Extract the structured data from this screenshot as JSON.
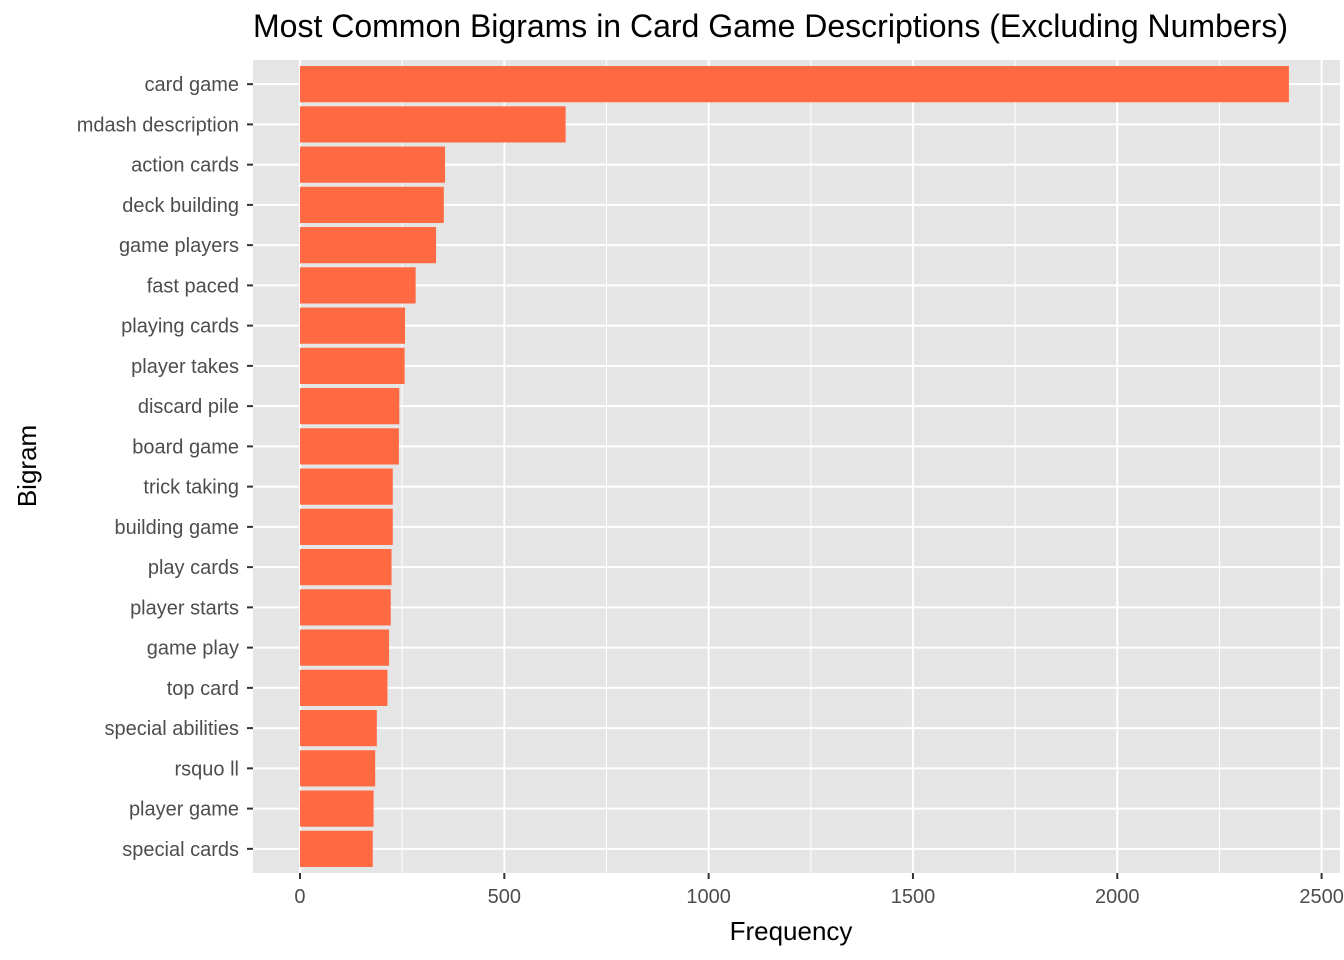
{
  "chart_data": {
    "type": "bar",
    "orientation": "horizontal",
    "title": "Most Common Bigrams in Card Game Descriptions (Excluding Numbers)",
    "xlabel": "Frequency",
    "ylabel": "Bigram",
    "xlim": [
      -115,
      2545
    ],
    "xticks": [
      0,
      500,
      1000,
      1500,
      2000,
      2500
    ],
    "grid": true,
    "legend": "none",
    "colors": {
      "bar": "#FF6A42",
      "panel": "#E5E5E5",
      "grid": "#FFFFFF",
      "tick_text": "#4D4D4D"
    },
    "categories": [
      "card game",
      "mdash description",
      "action cards",
      "deck building",
      "game players",
      "fast paced",
      "playing cards",
      "player takes",
      "discard pile",
      "board game",
      "trick taking",
      "building game",
      "play cards",
      "player starts",
      "game play",
      "top card",
      "special abilities",
      "rsquo ll",
      "player game",
      "special cards"
    ],
    "values": [
      2420,
      650,
      355,
      352,
      333,
      283,
      257,
      256,
      243,
      242,
      227,
      227,
      224,
      222,
      218,
      214,
      188,
      184,
      180,
      178
    ]
  }
}
